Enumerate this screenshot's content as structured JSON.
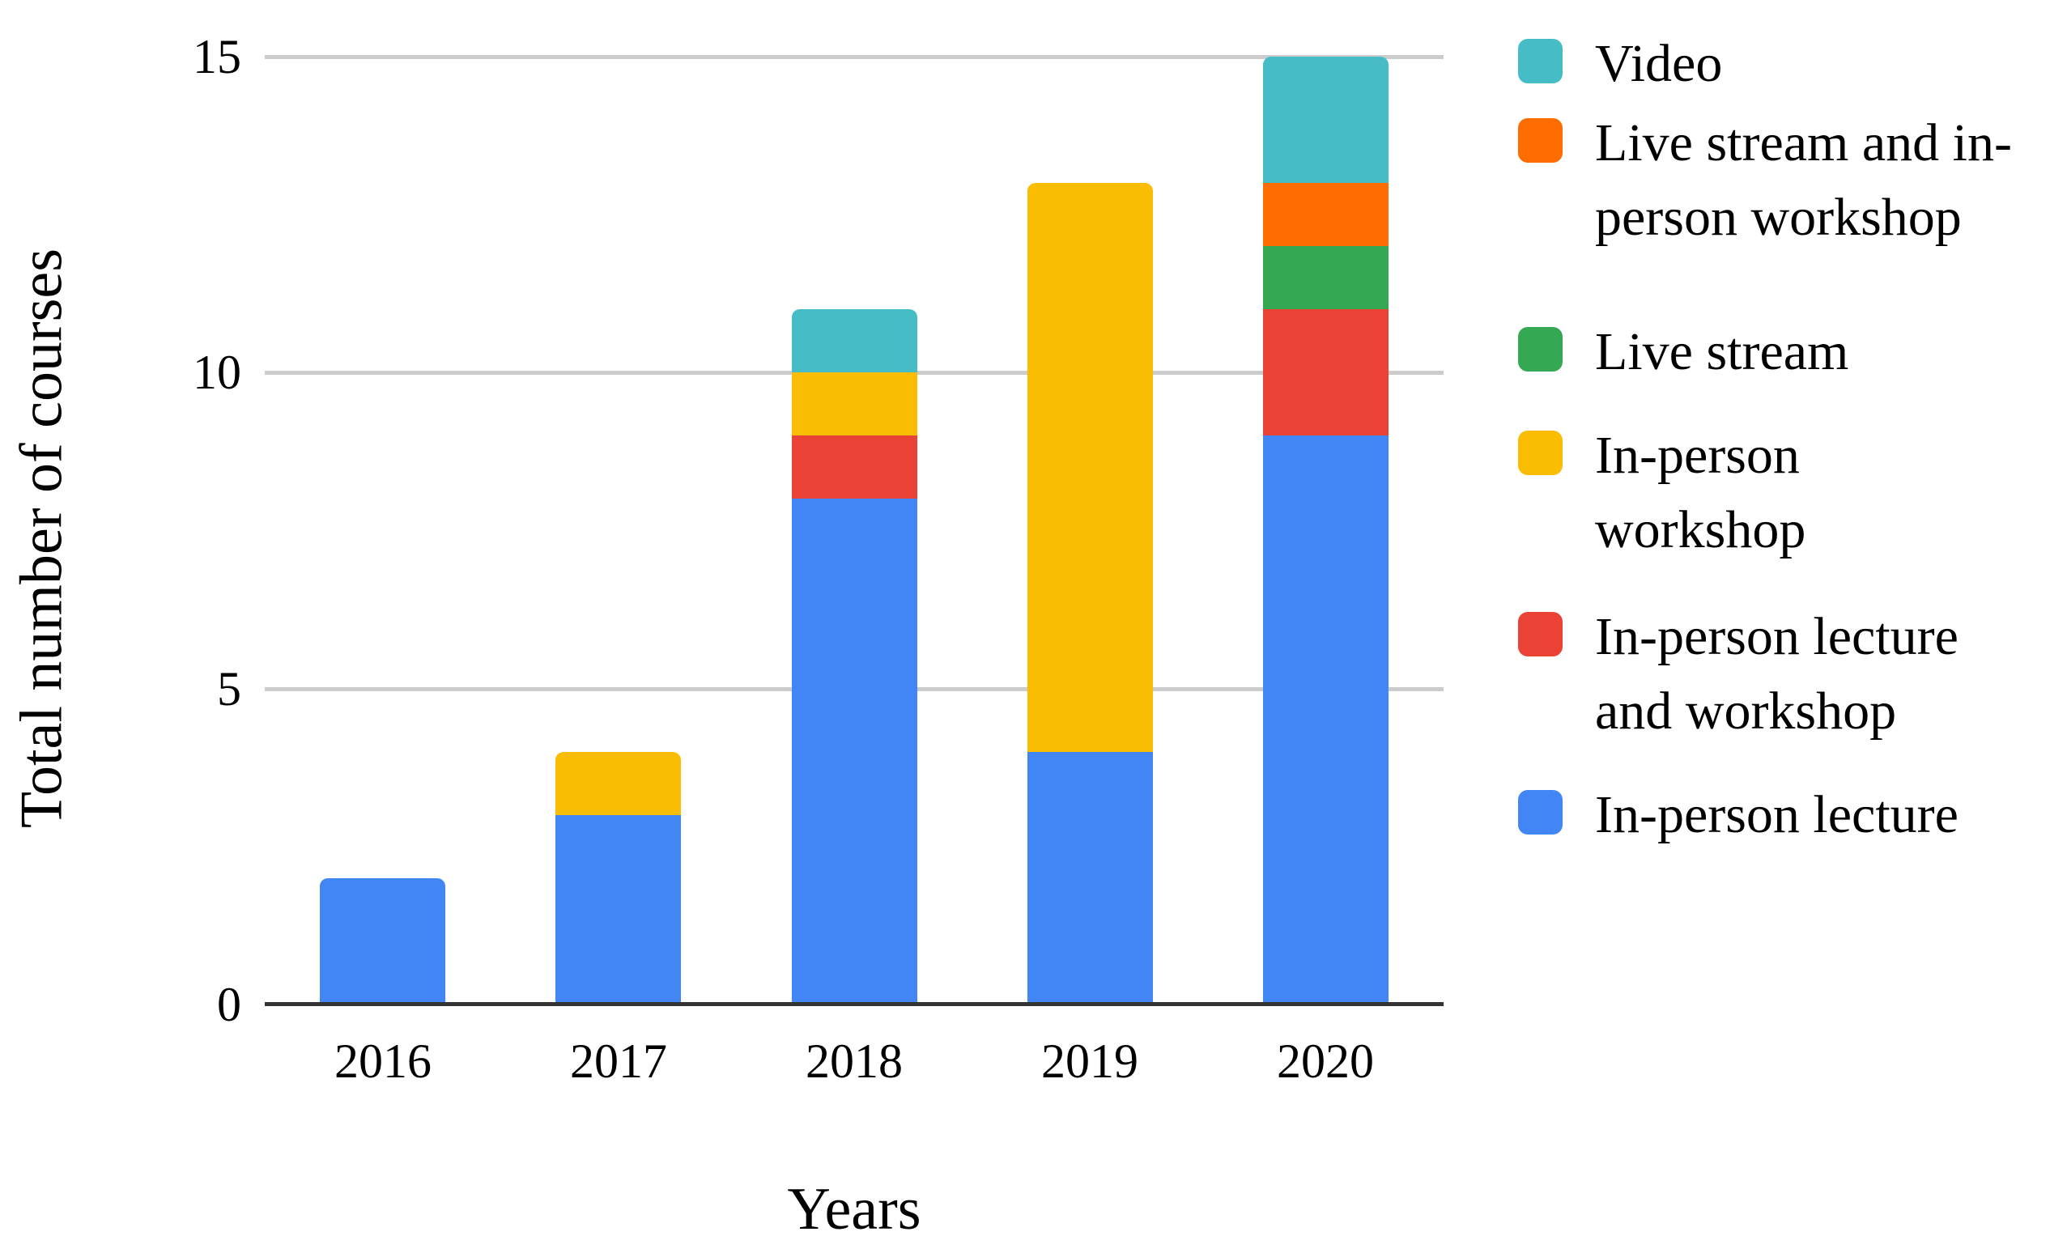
{
  "chart_data": {
    "type": "bar",
    "stacked": true,
    "title": "",
    "xlabel": "Years",
    "ylabel": "Total number of courses",
    "categories": [
      "2016",
      "2017",
      "2018",
      "2019",
      "2020"
    ],
    "series": [
      {
        "name": "In-person lecture",
        "color": "#4285F4",
        "values": [
          2,
          3,
          8,
          4,
          9
        ]
      },
      {
        "name": "In-person lecture and workshop",
        "color": "#EA4335",
        "values": [
          0,
          0,
          1,
          0,
          2
        ]
      },
      {
        "name": "In-person workshop",
        "color": "#FBBC04",
        "values": [
          0,
          1,
          1,
          9,
          0
        ]
      },
      {
        "name": "Live stream",
        "color": "#34A853",
        "values": [
          0,
          0,
          0,
          0,
          1
        ]
      },
      {
        "name": "Live stream and in-person workshop",
        "color": "#FF6D01",
        "values": [
          0,
          0,
          0,
          0,
          1
        ]
      },
      {
        "name": "Video",
        "color": "#46BDC6",
        "values": [
          0,
          0,
          1,
          0,
          2
        ]
      }
    ],
    "totals": [
      2,
      4,
      11,
      13,
      15
    ],
    "ylim": [
      0,
      15
    ],
    "y_ticks": [
      0,
      5,
      10,
      15
    ],
    "grid": true,
    "legend_position": "right"
  },
  "legend": {
    "items": [
      {
        "label": "Video",
        "lines": [
          "Video"
        ]
      },
      {
        "label": "Live stream and in-person workshop",
        "lines": [
          "Live stream and in-",
          "person workshop"
        ]
      },
      {
        "label": "Live stream",
        "lines": [
          "Live stream"
        ]
      },
      {
        "label": "In-person workshop",
        "lines": [
          "In-person",
          "workshop"
        ]
      },
      {
        "label": "In-person lecture and workshop",
        "lines": [
          "In-person lecture",
          "and workshop"
        ]
      },
      {
        "label": "In-person lecture",
        "lines": [
          "In-person lecture"
        ]
      }
    ]
  },
  "style": {
    "grid_color": "#CCCCCC",
    "axis_color": "#333333",
    "text_color": "#000000",
    "background": "#FFFFFF"
  }
}
